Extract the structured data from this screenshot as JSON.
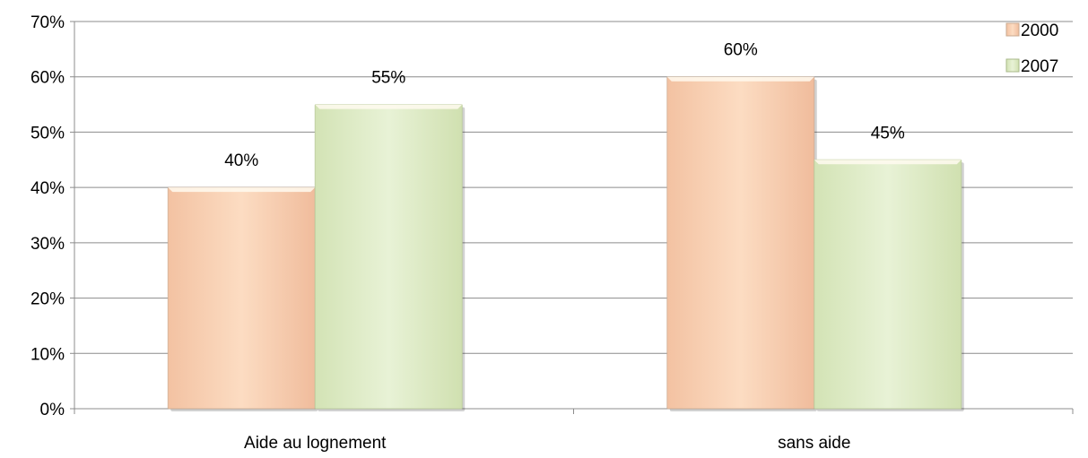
{
  "chart_data": {
    "type": "bar",
    "categories": [
      "Aide au lognement",
      "sans aide"
    ],
    "series": [
      {
        "name": "2000",
        "values": [
          40,
          60
        ],
        "labels": [
          "40%",
          "60%"
        ],
        "color": "#FAD4B4"
      },
      {
        "name": "2007",
        "values": [
          55,
          45
        ],
        "labels": [
          "55%",
          "45%"
        ],
        "color": "#E2EFCB"
      }
    ],
    "ylim": [
      0,
      70
    ],
    "yticks": [
      "0%",
      "10%",
      "20%",
      "30%",
      "40%",
      "50%",
      "60%",
      "70%"
    ],
    "grid": true,
    "legend_position": "top-right"
  }
}
